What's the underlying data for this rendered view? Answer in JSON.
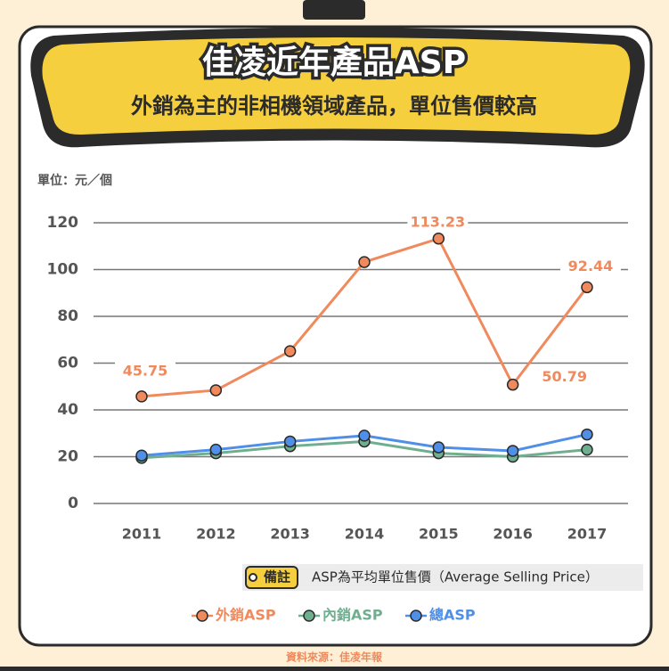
{
  "chart_data": {
    "type": "line",
    "title": "佳凌近年產品ASP",
    "subtitle": "外銷為主的非相機領域產品，單位售價較高",
    "y_unit": "單位：元／個",
    "categories": [
      "2011",
      "2012",
      "2013",
      "2014",
      "2015",
      "2016",
      "2017"
    ],
    "series": [
      {
        "name": "外銷ASP",
        "color": "#f08a5d",
        "values": [
          45.75,
          48.4,
          65.1,
          103.2,
          113.23,
          50.79,
          92.44
        ]
      },
      {
        "name": "內銷ASP",
        "color": "#6fae8f",
        "values": [
          19.5,
          21.5,
          24.5,
          26.5,
          21.5,
          20,
          23
        ]
      },
      {
        "name": "總ASP",
        "color": "#4f8fe8",
        "values": [
          20.5,
          23,
          26.5,
          29,
          24,
          22.5,
          29.5
        ]
      }
    ],
    "ylim": [
      0,
      120
    ],
    "yticks": [
      0,
      20,
      40,
      60,
      80,
      100,
      120
    ],
    "grid": true,
    "note_badge": "備註",
    "note": "ASP為平均單位售價（Average Selling Price）",
    "source": "資料來源：佳凌年報"
  }
}
